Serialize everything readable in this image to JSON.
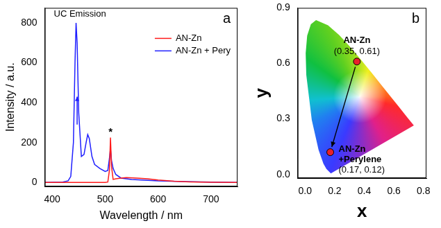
{
  "chart_data": [
    {
      "panel_label": "a",
      "type": "line",
      "x_label": "Wavelength / nm",
      "y_label": "Intensity / a.u.",
      "xlim": [
        386,
        750
      ],
      "xticks": [
        400,
        500,
        600,
        700
      ],
      "ylim": [
        -20,
        875
      ],
      "yticks": [
        0,
        200,
        400,
        600,
        800
      ],
      "grid": false,
      "legend": "upper right",
      "series": [
        {
          "name": "AN-Zn",
          "color": "#ff1a1a",
          "x": [
            386,
            450,
            500,
            505,
            508,
            510,
            512,
            515,
            520,
            530,
            540,
            560,
            580,
            600,
            630,
            660,
            700,
            750
          ],
          "values": [
            0,
            0,
            0,
            2,
            60,
            225,
            80,
            15,
            18,
            22,
            24,
            22,
            18,
            12,
            6,
            3,
            1,
            0
          ]
        },
        {
          "name": "AN-Zn + Pery",
          "color": "#1f1fff",
          "x": [
            386,
            420,
            430,
            435,
            440,
            443,
            445,
            447,
            450,
            455,
            460,
            464,
            467,
            470,
            475,
            480,
            490,
            500,
            505,
            508,
            510,
            512,
            515,
            520,
            530,
            550,
            600,
            650,
            700,
            750
          ],
          "values": [
            0,
            2,
            8,
            30,
            200,
            600,
            800,
            700,
            350,
            130,
            140,
            200,
            240,
            220,
            130,
            90,
            70,
            55,
            60,
            120,
            170,
            110,
            70,
            40,
            22,
            15,
            8,
            4,
            2,
            0
          ]
        }
      ],
      "annotations": [
        {
          "text": "UC Emission",
          "x": 403,
          "y": 845
        },
        {
          "text": "*",
          "x": 510,
          "y": 250
        }
      ],
      "arrows": [
        {
          "x": [
            447,
            447
          ],
          "y": [
            290,
            430
          ],
          "color": "#1f1fff"
        }
      ]
    },
    {
      "panel_label": "b",
      "type": "scatter",
      "x_label": "x",
      "y_label": "y",
      "xlim": [
        -0.05,
        0.82
      ],
      "xticks": [
        {
          "value": 0,
          "label": "0.0"
        },
        0.2,
        0.4,
        0.6,
        0.8
      ],
      "ylim": [
        -0.02,
        0.9
      ],
      "yticks": [
        {
          "value": 0,
          "label": "0.0"
        },
        0.3,
        0.6,
        0.9
      ],
      "grid": false,
      "series": [
        {
          "name": "AN-Zn",
          "color": "#e8202a",
          "x": [
            0.35
          ],
          "values": [
            0.61
          ],
          "value_labels": [
            "(0.35, 0.61)"
          ]
        },
        {
          "name": "AN-Zn +Perylene",
          "color": "#e8202a",
          "x": [
            0.17
          ],
          "values": [
            0.12
          ],
          "value_labels": [
            "(0.17, 0.12)"
          ]
        }
      ],
      "locus": {
        "x": [
          0.174,
          0.144,
          0.124,
          0.091,
          0.045,
          0.008,
          0.004,
          0.014,
          0.039,
          0.074,
          0.155,
          0.23,
          0.302,
          0.373,
          0.444,
          0.512,
          0.575,
          0.627,
          0.691,
          0.735
        ],
        "y": [
          0.005,
          0.03,
          0.058,
          0.133,
          0.295,
          0.538,
          0.655,
          0.75,
          0.812,
          0.834,
          0.806,
          0.754,
          0.692,
          0.624,
          0.555,
          0.487,
          0.424,
          0.372,
          0.308,
          0.265
        ]
      }
    }
  ]
}
